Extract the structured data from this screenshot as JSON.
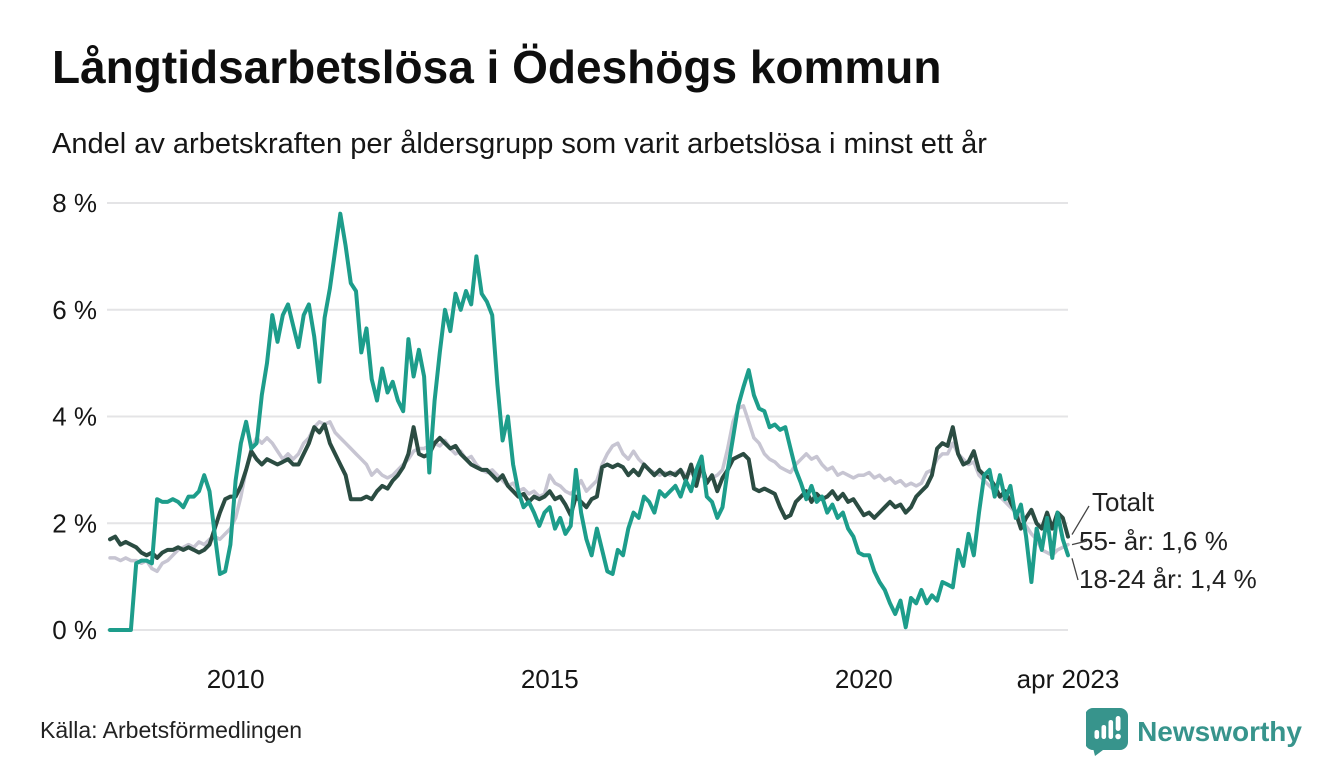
{
  "title": "Långtidsarbetslösa i Ödeshögs kommun",
  "subtitle": "Andel av arbetskraften per åldersgrupp som varit arbetslösa i minst ett år",
  "source": "Källa: Arbetsförmedlingen",
  "branding": {
    "name": "Newsworthy",
    "color": "#37948c",
    "icon": "chart-speech-bubble-icon"
  },
  "chart_data": {
    "type": "line",
    "x_start": "jan 2008",
    "x_step": "1 month",
    "x_end": "apr 2023",
    "ylim": [
      0,
      8
    ],
    "grid": true,
    "legend_position": "end-of-line-labels-right",
    "yticks": [
      "0 %",
      "2 %",
      "4 %",
      "6 %",
      "8 %"
    ],
    "xticks": [
      {
        "label": "2010",
        "month_index": 24
      },
      {
        "label": "2015",
        "month_index": 84
      },
      {
        "label": "2020",
        "month_index": 144
      },
      {
        "label": "apr 2023",
        "month_index": 183
      }
    ],
    "series": [
      {
        "name": "55- år",
        "end_label": "55- år: 1,6 %",
        "end_value_text": "1,6 %",
        "color": "#c7c5d2",
        "width": 3.5,
        "values": [
          1.35,
          1.35,
          1.3,
          1.35,
          1.3,
          1.3,
          1.25,
          1.3,
          1.15,
          1.1,
          1.25,
          1.3,
          1.4,
          1.5,
          1.55,
          1.6,
          1.55,
          1.65,
          1.6,
          1.7,
          1.75,
          1.7,
          1.8,
          1.9,
          2.1,
          2.5,
          3.0,
          3.4,
          3.6,
          3.5,
          3.6,
          3.5,
          3.35,
          3.2,
          3.3,
          3.2,
          3.3,
          3.5,
          3.6,
          3.8,
          3.9,
          3.85,
          3.9,
          3.7,
          3.6,
          3.5,
          3.4,
          3.3,
          3.2,
          3.1,
          2.9,
          3.0,
          2.9,
          2.85,
          2.9,
          3.0,
          3.1,
          3.2,
          3.35,
          3.4,
          3.4,
          3.45,
          3.5,
          3.45,
          3.55,
          3.4,
          3.3,
          3.35,
          3.2,
          3.25,
          3.1,
          3.0,
          2.95,
          3.0,
          2.9,
          2.8,
          2.7,
          2.75,
          2.6,
          2.65,
          2.55,
          2.6,
          2.5,
          2.55,
          2.9,
          2.75,
          2.7,
          2.6,
          2.55,
          2.65,
          2.8,
          2.6,
          2.7,
          2.8,
          3.1,
          3.3,
          3.45,
          3.5,
          3.3,
          3.2,
          3.35,
          3.2,
          3.1,
          3.0,
          2.95,
          2.9,
          2.95,
          2.9,
          2.95,
          3.0,
          2.9,
          2.95,
          2.85,
          2.9,
          2.8,
          2.85,
          2.9,
          3.0,
          3.4,
          3.9,
          4.15,
          4.2,
          3.9,
          3.6,
          3.5,
          3.3,
          3.2,
          3.15,
          3.05,
          3.0,
          2.95,
          3.1,
          3.2,
          3.3,
          3.2,
          3.25,
          3.1,
          3.0,
          3.05,
          2.9,
          2.95,
          2.9,
          2.85,
          2.9,
          2.9,
          2.95,
          2.85,
          2.9,
          2.8,
          2.85,
          2.75,
          2.8,
          2.7,
          2.75,
          2.7,
          2.75,
          2.95,
          3.0,
          3.2,
          3.3,
          3.3,
          3.5,
          3.3,
          3.2,
          3.1,
          3.15,
          2.9,
          2.8,
          2.7,
          2.6,
          2.5,
          2.4,
          2.3,
          2.2,
          2.1,
          1.95,
          1.8,
          1.7,
          1.5,
          1.45,
          1.4,
          1.5,
          1.55,
          1.6
        ]
      },
      {
        "name": "Totalt",
        "end_label": "Totalt",
        "end_value_text": "",
        "color": "#2b4c42",
        "width": 4,
        "values": [
          1.7,
          1.75,
          1.6,
          1.65,
          1.6,
          1.55,
          1.45,
          1.4,
          1.45,
          1.35,
          1.45,
          1.5,
          1.5,
          1.55,
          1.5,
          1.55,
          1.5,
          1.45,
          1.5,
          1.6,
          1.9,
          2.2,
          2.45,
          2.5,
          2.5,
          2.7,
          3.0,
          3.35,
          3.2,
          3.1,
          3.2,
          3.15,
          3.1,
          3.15,
          3.2,
          3.1,
          3.1,
          3.3,
          3.5,
          3.8,
          3.7,
          3.85,
          3.5,
          3.3,
          3.1,
          2.9,
          2.45,
          2.45,
          2.45,
          2.5,
          2.45,
          2.6,
          2.7,
          2.65,
          2.8,
          2.9,
          3.05,
          3.3,
          3.8,
          3.3,
          3.25,
          3.3,
          3.5,
          3.6,
          3.5,
          3.4,
          3.45,
          3.3,
          3.2,
          3.1,
          3.05,
          3.0,
          3.0,
          2.9,
          2.8,
          2.9,
          2.7,
          2.6,
          2.5,
          2.55,
          2.4,
          2.5,
          2.45,
          2.5,
          2.6,
          2.45,
          2.5,
          2.35,
          2.15,
          2.5,
          2.4,
          2.3,
          2.45,
          2.5,
          3.05,
          3.1,
          3.05,
          3.1,
          3.05,
          2.9,
          3.0,
          2.9,
          3.1,
          3.0,
          2.9,
          3.0,
          2.9,
          2.95,
          2.9,
          3.0,
          2.8,
          3.1,
          2.7,
          3.1,
          2.75,
          2.9,
          2.6,
          2.85,
          3.0,
          3.2,
          3.25,
          3.3,
          3.2,
          2.65,
          2.6,
          2.65,
          2.6,
          2.55,
          2.3,
          2.1,
          2.15,
          2.4,
          2.5,
          2.6,
          2.4,
          2.55,
          2.45,
          2.5,
          2.6,
          2.45,
          2.55,
          2.4,
          2.45,
          2.3,
          2.15,
          2.2,
          2.1,
          2.2,
          2.3,
          2.4,
          2.3,
          2.35,
          2.2,
          2.3,
          2.5,
          2.6,
          2.7,
          2.9,
          3.4,
          3.5,
          3.45,
          3.8,
          3.3,
          3.1,
          3.15,
          3.35,
          3.0,
          2.9,
          2.85,
          2.7,
          2.5,
          2.6,
          2.4,
          2.2,
          1.9,
          2.1,
          2.25,
          2.0,
          1.9,
          2.2,
          1.9,
          2.2,
          2.1,
          1.75
        ]
      },
      {
        "name": "18-24 år",
        "end_label": "18-24 år: 1,4 %",
        "end_value_text": "1,4 %",
        "color": "#1d9d8b",
        "width": 4,
        "values": [
          0.0,
          0.0,
          0.0,
          0.0,
          0.0,
          1.25,
          1.3,
          1.3,
          1.25,
          2.45,
          2.4,
          2.4,
          2.45,
          2.4,
          2.3,
          2.5,
          2.5,
          2.6,
          2.9,
          2.6,
          1.8,
          1.05,
          1.1,
          1.6,
          2.8,
          3.5,
          3.9,
          3.4,
          3.5,
          4.4,
          5.0,
          5.9,
          5.4,
          5.9,
          6.1,
          5.7,
          5.3,
          5.9,
          6.1,
          5.5,
          4.65,
          5.85,
          6.4,
          7.1,
          7.8,
          7.2,
          6.5,
          6.35,
          5.2,
          5.65,
          4.7,
          4.3,
          4.9,
          4.45,
          4.65,
          4.3,
          4.1,
          5.45,
          4.75,
          5.25,
          4.75,
          2.95,
          4.3,
          5.2,
          6.0,
          5.6,
          6.3,
          6.0,
          6.35,
          6.1,
          7.0,
          6.3,
          6.15,
          5.9,
          4.6,
          3.55,
          4.0,
          3.1,
          2.6,
          2.3,
          2.4,
          2.2,
          1.95,
          2.2,
          2.3,
          1.9,
          2.1,
          1.8,
          1.95,
          3.0,
          2.2,
          1.7,
          1.4,
          1.9,
          1.5,
          1.1,
          1.05,
          1.5,
          1.4,
          1.9,
          2.2,
          2.1,
          2.5,
          2.4,
          2.2,
          2.6,
          2.5,
          2.6,
          2.7,
          2.5,
          2.8,
          2.6,
          3.0,
          3.25,
          2.5,
          2.4,
          2.1,
          2.3,
          3.0,
          3.6,
          4.2,
          4.55,
          4.87,
          4.4,
          4.15,
          4.1,
          3.8,
          3.85,
          3.75,
          3.8,
          3.4,
          3.0,
          2.75,
          2.45,
          2.7,
          2.4,
          2.5,
          2.2,
          2.35,
          2.1,
          2.2,
          1.9,
          1.75,
          1.45,
          1.4,
          1.4,
          1.1,
          0.9,
          0.75,
          0.5,
          0.3,
          0.55,
          0.05,
          0.6,
          0.5,
          0.75,
          0.5,
          0.65,
          0.55,
          0.9,
          0.85,
          0.8,
          1.5,
          1.2,
          1.8,
          1.4,
          2.2,
          2.9,
          3.0,
          2.5,
          2.9,
          2.45,
          2.7,
          2.1,
          2.35,
          1.75,
          0.9,
          1.9,
          1.5,
          2.1,
          1.35,
          2.2,
          1.7,
          1.4
        ]
      }
    ]
  }
}
